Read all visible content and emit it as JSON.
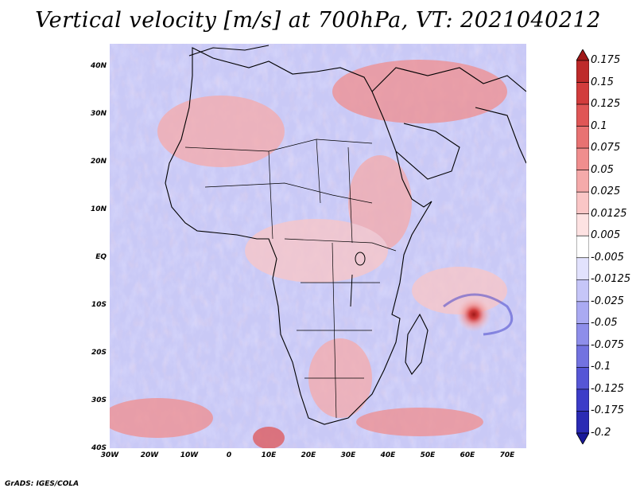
{
  "title": "Vertical velocity [m/s] at 700hPa, VT: 2021040212",
  "credit": "GrADS: IGES/COLA",
  "map": {
    "lat_ticks": [
      "40N",
      "30N",
      "20N",
      "10N",
      "EQ",
      "10S",
      "20S",
      "30S",
      "40S"
    ],
    "lon_ticks": [
      "30W",
      "20W",
      "10W",
      "0",
      "10E",
      "20E",
      "30E",
      "40E",
      "50E",
      "60E",
      "70E"
    ],
    "lat_range": [
      -40,
      45
    ],
    "lon_range": [
      -30,
      75
    ]
  },
  "colorbar": {
    "labels": [
      "0.175",
      "0.15",
      "0.125",
      "0.1",
      "0.075",
      "0.05",
      "0.025",
      "0.0125",
      "0.005",
      "-0.005",
      "-0.0125",
      "-0.025",
      "-0.05",
      "-0.075",
      "-0.1",
      "-0.125",
      "-0.175",
      "-0.2"
    ],
    "colors": [
      "#a01818",
      "#be2a2a",
      "#d23c3c",
      "#e05656",
      "#e87272",
      "#f08e8e",
      "#f5aaaa",
      "#fac6c6",
      "#fde2e2",
      "#ffffff",
      "#e2e2fd",
      "#c6c6f8",
      "#aaaaf2",
      "#8e8eea",
      "#7272e0",
      "#5656d6",
      "#3c3cc8",
      "#2a2ab4",
      "#18189a"
    ]
  }
}
